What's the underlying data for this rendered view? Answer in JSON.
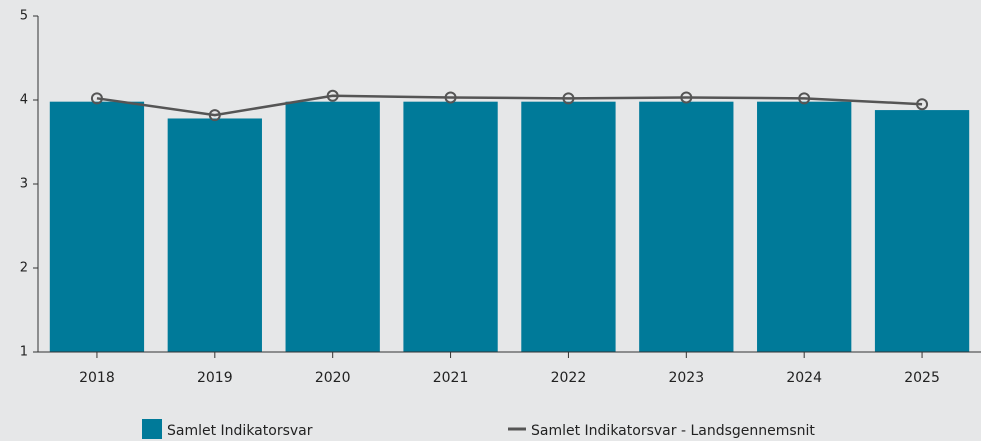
{
  "chart_data": {
    "type": "combo",
    "categories": [
      "2018",
      "2019",
      "2020",
      "2021",
      "2022",
      "2023",
      "2024",
      "2025"
    ],
    "series": [
      {
        "name": "Samlet Indikatorsvar",
        "type": "bar",
        "color": "#007a99",
        "values": [
          3.98,
          3.78,
          3.98,
          3.98,
          3.98,
          3.98,
          3.98,
          3.88
        ]
      },
      {
        "name": "Samlet Indikatorsvar - Landsgennemsnit",
        "type": "line",
        "color": "#555555",
        "values": [
          4.02,
          3.82,
          4.05,
          4.03,
          4.02,
          4.03,
          4.02,
          3.95
        ]
      }
    ],
    "ylim": [
      1,
      5
    ],
    "yticks": [
      1,
      2,
      3,
      4,
      5
    ],
    "grid": false
  }
}
